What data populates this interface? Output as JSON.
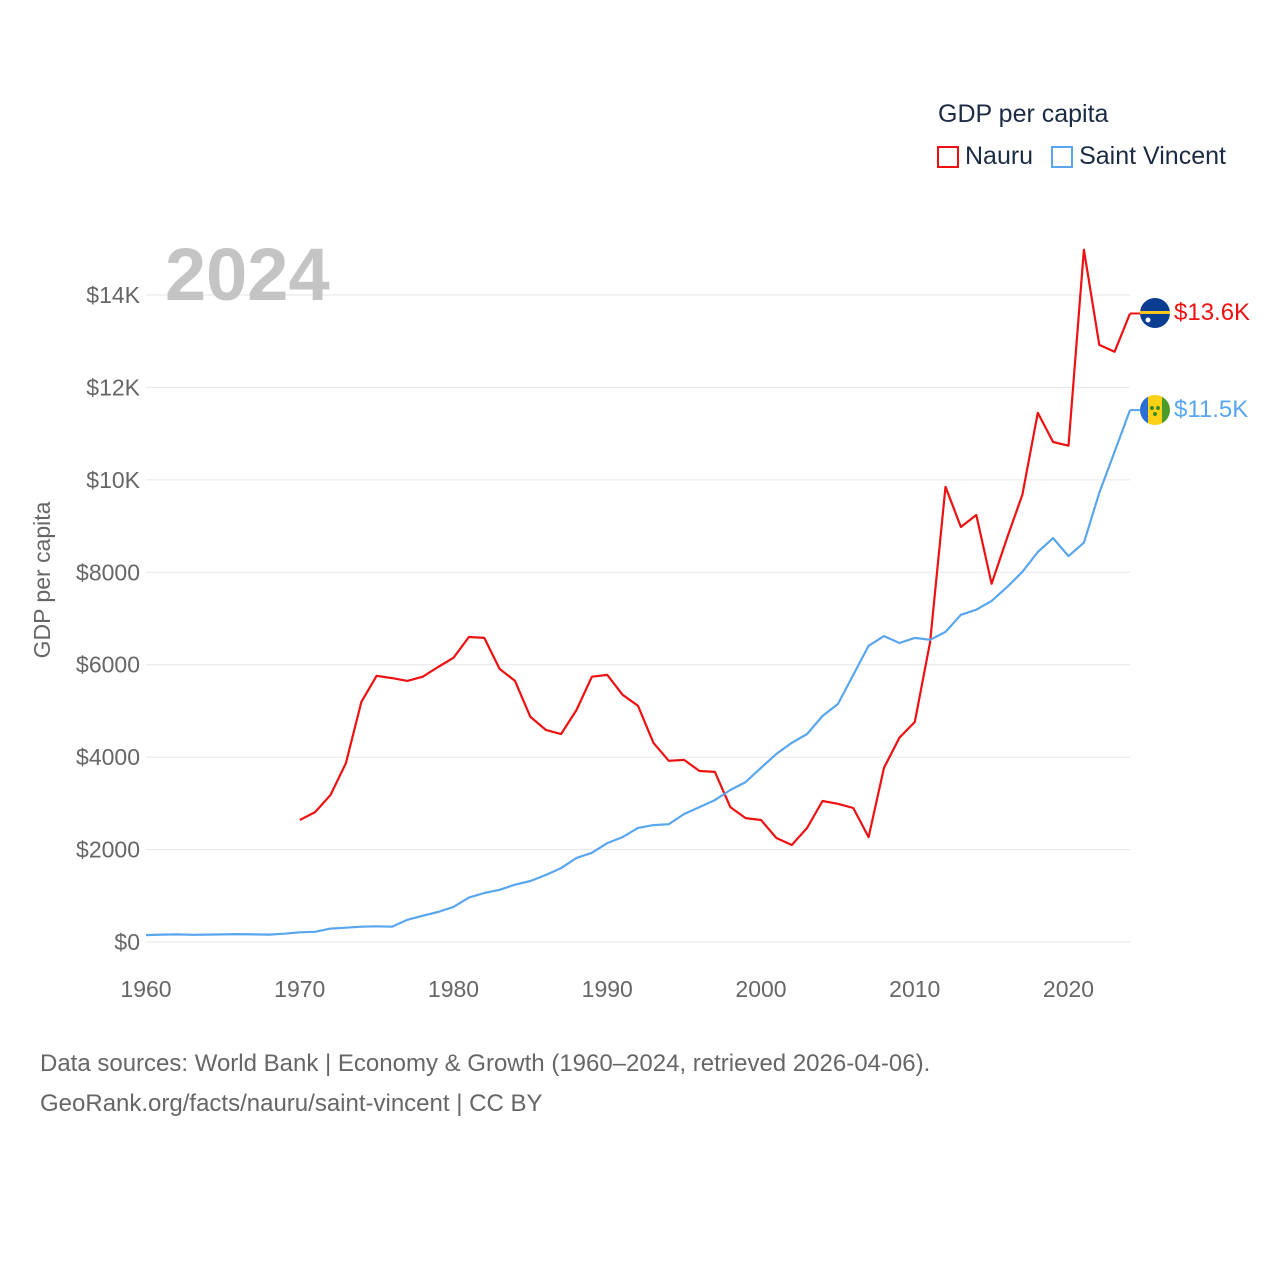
{
  "legend": {
    "title": "GDP per capita",
    "items": [
      {
        "label": "Nauru",
        "color": "#ee1111"
      },
      {
        "label": "Saint Vincent",
        "color": "#5aa6ee"
      }
    ]
  },
  "year_label": "2024",
  "end_labels": {
    "nauru": "$13.6K",
    "saint_vincent": "$11.5K"
  },
  "flags": {
    "nauru": "nauru-flag-icon",
    "saint_vincent": "saint-vincent-flag-icon"
  },
  "footer": {
    "line1": "Data sources: World Bank | Economy & Growth (1960–2024, retrieved 2026-04-06).",
    "line2": "GeoRank.org/facts/nauru/saint-vincent | CC BY"
  },
  "chart_data": {
    "type": "line",
    "title": "GDP per capita",
    "xlabel": "",
    "ylabel": "GDP per capita",
    "xlim": [
      1960,
      2024
    ],
    "ylim": [
      0,
      14000
    ],
    "x_ticks": [
      1960,
      1970,
      1980,
      1990,
      2000,
      2010,
      2020
    ],
    "x_tick_labels": [
      "1960",
      "1970",
      "1980",
      "1990",
      "2000",
      "2010",
      "2020"
    ],
    "y_ticks": [
      0,
      2000,
      4000,
      6000,
      8000,
      10000,
      12000,
      14000
    ],
    "y_tick_labels": [
      "$0",
      "$2000",
      "$4000",
      "$6000",
      "$8000",
      "$10K",
      "$12K",
      "$14K"
    ],
    "grid": true,
    "legend_position": "top-right",
    "series": [
      {
        "name": "Nauru",
        "color": "#ee1111",
        "start_year": 1970,
        "values": [
          2640,
          2810,
          3180,
          3870,
          5190,
          5760,
          5710,
          5650,
          5740,
          5950,
          6150,
          6600,
          6580,
          5910,
          5650,
          4870,
          4590,
          4500,
          5020,
          5740,
          5780,
          5350,
          5110,
          4310,
          3920,
          3940,
          3700,
          3680,
          2920,
          2680,
          2640,
          2250,
          2100,
          2470,
          3050,
          2990,
          2900,
          2270,
          3770,
          4420,
          4760,
          6490,
          9850,
          8980,
          9240,
          7750,
          8740,
          9680,
          11450,
          10820,
          10740,
          14980,
          12920,
          12770,
          13600
        ]
      },
      {
        "name": "Saint Vincent",
        "color": "#5aa6ee",
        "start_year": 1960,
        "values": [
          150,
          160,
          165,
          155,
          160,
          165,
          170,
          165,
          160,
          180,
          210,
          220,
          290,
          310,
          330,
          340,
          330,
          480,
          570,
          650,
          760,
          960,
          1060,
          1130,
          1240,
          1320,
          1450,
          1600,
          1820,
          1930,
          2140,
          2270,
          2470,
          2530,
          2550,
          2770,
          2920,
          3070,
          3290,
          3460,
          3770,
          4070,
          4310,
          4500,
          4890,
          5150,
          5780,
          6410,
          6620,
          6470,
          6580,
          6540,
          6710,
          7080,
          7190,
          7380,
          7680,
          8010,
          8440,
          8740,
          8350,
          8640,
          9720,
          10610,
          11510
        ]
      }
    ]
  }
}
